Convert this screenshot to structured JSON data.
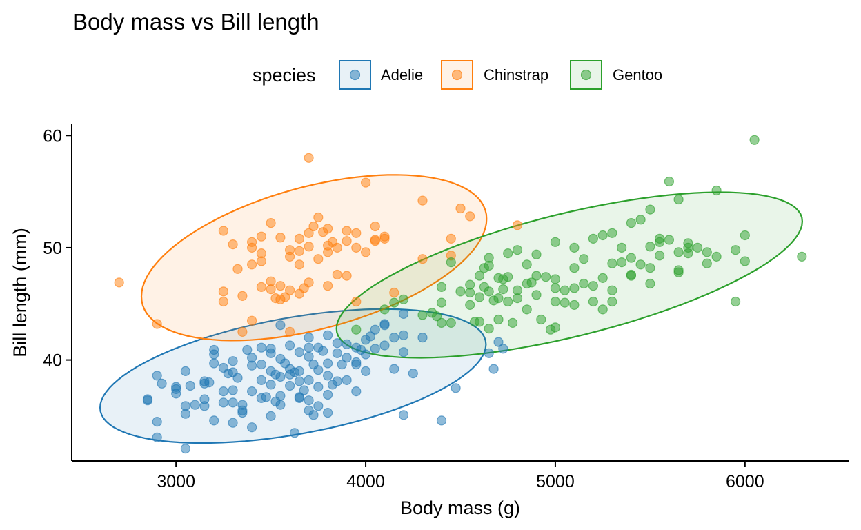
{
  "chart_data": {
    "type": "scatter",
    "title": "Body mass vs Bill length",
    "xlabel": "Body mass (g)",
    "ylabel": "Bill length (mm)",
    "xlim": [
      2450,
      6550
    ],
    "ylim": [
      31,
      61
    ],
    "x_ticks": [
      3000,
      4000,
      5000,
      6000
    ],
    "y_ticks": [
      40,
      50,
      60
    ],
    "grid": false,
    "legend": {
      "title": "species",
      "position": "top"
    },
    "series": [
      {
        "name": "Adelie",
        "color": "#1f77b4",
        "points": [
          [
            2850,
            36.5
          ],
          [
            2850,
            36.4
          ],
          [
            2900,
            38.6
          ],
          [
            2900,
            34.5
          ],
          [
            2900,
            33.1
          ],
          [
            2925,
            37.9
          ],
          [
            3000,
            37.6
          ],
          [
            3000,
            37.0
          ],
          [
            3000,
            37.4
          ],
          [
            3050,
            39.0
          ],
          [
            3050,
            35.2
          ],
          [
            3050,
            35.9
          ],
          [
            3050,
            32.1
          ],
          [
            3075,
            37.7
          ],
          [
            3100,
            36.0
          ],
          [
            3150,
            38.1
          ],
          [
            3150,
            36.5
          ],
          [
            3150,
            37.9
          ],
          [
            3150,
            35.9
          ],
          [
            3175,
            38.0
          ],
          [
            3200,
            40.9
          ],
          [
            3200,
            40.5
          ],
          [
            3200,
            39.7
          ],
          [
            3200,
            34.6
          ],
          [
            3250,
            39.3
          ],
          [
            3250,
            37.2
          ],
          [
            3250,
            36.2
          ],
          [
            3275,
            38.8
          ],
          [
            3300,
            38.9
          ],
          [
            3300,
            37.3
          ],
          [
            3300,
            36.2
          ],
          [
            3300,
            34.4
          ],
          [
            3325,
            38.4
          ],
          [
            3350,
            36.0
          ],
          [
            3350,
            35.5
          ],
          [
            3350,
            35.3
          ],
          [
            3375,
            40.9
          ],
          [
            3400,
            40.2
          ],
          [
            3400,
            39.5
          ],
          [
            3400,
            37.2
          ],
          [
            3400,
            34.0
          ],
          [
            3450,
            41.1
          ],
          [
            3450,
            39.6
          ],
          [
            3450,
            38.2
          ],
          [
            3450,
            36.6
          ],
          [
            3475,
            36.7
          ],
          [
            3500,
            40.6
          ],
          [
            3500,
            39.0
          ],
          [
            3500,
            37.8
          ],
          [
            3500,
            35.0
          ],
          [
            3525,
            38.7
          ],
          [
            3525,
            36.3
          ],
          [
            3550,
            40.1
          ],
          [
            3550,
            38.5
          ],
          [
            3550,
            36.8
          ],
          [
            3550,
            36.0
          ],
          [
            3575,
            39.7
          ],
          [
            3600,
            41.3
          ],
          [
            3600,
            39.2
          ],
          [
            3600,
            37.7
          ],
          [
            3625,
            38.9
          ],
          [
            3625,
            33.5
          ],
          [
            3650,
            40.7
          ],
          [
            3650,
            38.1
          ],
          [
            3650,
            36.6
          ],
          [
            3650,
            39.0
          ],
          [
            3675,
            37.3
          ],
          [
            3700,
            42.0
          ],
          [
            3700,
            40.3
          ],
          [
            3700,
            38.2
          ],
          [
            3700,
            36.4
          ],
          [
            3700,
            35.5
          ],
          [
            3725,
            39.6
          ],
          [
            3725,
            35.1
          ],
          [
            3750,
            41.1
          ],
          [
            3750,
            39.1
          ],
          [
            3750,
            37.6
          ],
          [
            3750,
            35.9
          ],
          [
            3775,
            40.8
          ],
          [
            3800,
            42.2
          ],
          [
            3800,
            39.7
          ],
          [
            3800,
            38.6
          ],
          [
            3800,
            36.9
          ],
          [
            3800,
            35.3
          ],
          [
            3825,
            37.8
          ],
          [
            3850,
            41.5
          ],
          [
            3850,
            40.6
          ],
          [
            3850,
            38.1
          ],
          [
            3875,
            39.6
          ],
          [
            3900,
            41.4
          ],
          [
            3900,
            40.2
          ],
          [
            3900,
            38.2
          ],
          [
            3950,
            41.1
          ],
          [
            3950,
            39.8
          ],
          [
            3950,
            37.2
          ],
          [
            3975,
            40.9
          ],
          [
            4000,
            41.8
          ],
          [
            4000,
            40.5
          ],
          [
            4000,
            39.0
          ],
          [
            4025,
            42.1
          ],
          [
            4050,
            41.0
          ],
          [
            4100,
            43.2
          ],
          [
            4100,
            41.3
          ],
          [
            4150,
            42.0
          ],
          [
            4150,
            39.2
          ],
          [
            4200,
            44.1
          ],
          [
            4200,
            40.7
          ],
          [
            4200,
            35.1
          ],
          [
            4250,
            38.8
          ],
          [
            4300,
            42.0
          ],
          [
            4400,
            34.6
          ],
          [
            4475,
            37.5
          ],
          [
            4650,
            40.6
          ],
          [
            4675,
            39.2
          ],
          [
            4700,
            41.6
          ],
          [
            4725,
            41.0
          ],
          [
            3950,
            39.6
          ],
          [
            4050,
            42.7
          ],
          [
            4100,
            43.1
          ],
          [
            4200,
            42.2
          ],
          [
            3650,
            36.7
          ],
          [
            3700,
            41.1
          ],
          [
            3300,
            39.9
          ],
          [
            3600,
            38.7
          ],
          [
            3500,
            41.0
          ],
          [
            3550,
            43.1
          ]
        ]
      },
      {
        "name": "Chinstrap",
        "color": "#ff7f0e",
        "points": [
          [
            2700,
            46.9
          ],
          [
            2900,
            43.2
          ],
          [
            3250,
            51.5
          ],
          [
            3250,
            46.1
          ],
          [
            3250,
            45.2
          ],
          [
            3300,
            50.3
          ],
          [
            3325,
            48.1
          ],
          [
            3350,
            42.5
          ],
          [
            3400,
            50.5
          ],
          [
            3400,
            50.0
          ],
          [
            3400,
            48.5
          ],
          [
            3400,
            43.5
          ],
          [
            3450,
            51.0
          ],
          [
            3450,
            49.5
          ],
          [
            3450,
            46.5
          ],
          [
            3500,
            52.2
          ],
          [
            3500,
            46.3
          ],
          [
            3525,
            45.5
          ],
          [
            3550,
            50.9
          ],
          [
            3550,
            46.6
          ],
          [
            3550,
            45.4
          ],
          [
            3575,
            45.6
          ],
          [
            3600,
            49.8
          ],
          [
            3600,
            46.2
          ],
          [
            3600,
            42.5
          ],
          [
            3650,
            50.8
          ],
          [
            3650,
            48.5
          ],
          [
            3650,
            45.9
          ],
          [
            3675,
            46.4
          ],
          [
            3700,
            58.0
          ],
          [
            3700,
            51.3
          ],
          [
            3700,
            50.1
          ],
          [
            3700,
            46.9
          ],
          [
            3725,
            51.9
          ],
          [
            3750,
            52.7
          ],
          [
            3750,
            49.0
          ],
          [
            3775,
            51.4
          ],
          [
            3800,
            51.7
          ],
          [
            3800,
            50.2
          ],
          [
            3800,
            49.6
          ],
          [
            3800,
            46.6
          ],
          [
            3825,
            50.5
          ],
          [
            3850,
            50.0
          ],
          [
            3850,
            47.6
          ],
          [
            3900,
            51.5
          ],
          [
            3900,
            47.5
          ],
          [
            3950,
            51.3
          ],
          [
            3950,
            50.0
          ],
          [
            3950,
            45.2
          ],
          [
            4000,
            55.8
          ],
          [
            4050,
            51.9
          ],
          [
            4050,
            50.7
          ],
          [
            4050,
            50.6
          ],
          [
            4100,
            51.0
          ],
          [
            4100,
            50.8
          ],
          [
            4150,
            46.0
          ],
          [
            4300,
            54.2
          ],
          [
            4300,
            49.0
          ],
          [
            4450,
            49.3
          ],
          [
            4450,
            50.8
          ],
          [
            4500,
            53.5
          ],
          [
            4550,
            52.8
          ],
          [
            4800,
            52.0
          ],
          [
            3650,
            49.7
          ],
          [
            3500,
            47.0
          ],
          [
            4000,
            49.6
          ],
          [
            3350,
            45.7
          ],
          [
            3900,
            50.6
          ],
          [
            3600,
            49.2
          ],
          [
            3450,
            48.8
          ]
        ]
      },
      {
        "name": "Gentoo",
        "color": "#2ca02c",
        "points": [
          [
            3950,
            42.7
          ],
          [
            4100,
            44.5
          ],
          [
            4150,
            45.1
          ],
          [
            4200,
            45.4
          ],
          [
            4300,
            44.0
          ],
          [
            4350,
            44.2
          ],
          [
            4375,
            43.9
          ],
          [
            4400,
            46.5
          ],
          [
            4400,
            45.1
          ],
          [
            4400,
            43.3
          ],
          [
            4450,
            43.3
          ],
          [
            4500,
            46.1
          ],
          [
            4550,
            46.7
          ],
          [
            4550,
            44.9
          ],
          [
            4575,
            43.4
          ],
          [
            4600,
            47.5
          ],
          [
            4600,
            45.6
          ],
          [
            4600,
            43.4
          ],
          [
            4625,
            48.2
          ],
          [
            4625,
            46.5
          ],
          [
            4650,
            49.1
          ],
          [
            4650,
            48.4
          ],
          [
            4650,
            46.1
          ],
          [
            4650,
            42.8
          ],
          [
            4675,
            45.3
          ],
          [
            4700,
            47.3
          ],
          [
            4700,
            45.5
          ],
          [
            4700,
            43.6
          ],
          [
            4725,
            47.2
          ],
          [
            4725,
            46.3
          ],
          [
            4750,
            49.5
          ],
          [
            4750,
            47.4
          ],
          [
            4750,
            45.2
          ],
          [
            4775,
            43.3
          ],
          [
            4800,
            49.8
          ],
          [
            4800,
            46.2
          ],
          [
            4850,
            48.5
          ],
          [
            4850,
            46.8
          ],
          [
            4850,
            44.5
          ],
          [
            4875,
            46.9
          ],
          [
            4900,
            49.4
          ],
          [
            4900,
            47.5
          ],
          [
            4900,
            45.8
          ],
          [
            4925,
            43.6
          ],
          [
            4950,
            47.4
          ],
          [
            4975,
            42.7
          ],
          [
            5000,
            50.5
          ],
          [
            5000,
            47.2
          ],
          [
            5000,
            46.4
          ],
          [
            5000,
            45.2
          ],
          [
            5000,
            42.9
          ],
          [
            5050,
            46.2
          ],
          [
            5050,
            45.1
          ],
          [
            5100,
            48.2
          ],
          [
            5100,
            46.4
          ],
          [
            5100,
            44.9
          ],
          [
            5150,
            49.0
          ],
          [
            5150,
            46.8
          ],
          [
            5200,
            50.8
          ],
          [
            5200,
            46.6
          ],
          [
            5200,
            45.2
          ],
          [
            5250,
            51.1
          ],
          [
            5250,
            47.3
          ],
          [
            5250,
            44.5
          ],
          [
            5300,
            51.3
          ],
          [
            5300,
            48.6
          ],
          [
            5300,
            46.2
          ],
          [
            5300,
            45.2
          ],
          [
            5350,
            50.0
          ],
          [
            5350,
            48.7
          ],
          [
            5400,
            52.2
          ],
          [
            5400,
            49.1
          ],
          [
            5400,
            47.6
          ],
          [
            5450,
            52.5
          ],
          [
            5450,
            48.5
          ],
          [
            5500,
            53.4
          ],
          [
            5500,
            50.1
          ],
          [
            5500,
            48.2
          ],
          [
            5500,
            46.8
          ],
          [
            5550,
            50.8
          ],
          [
            5550,
            49.3
          ],
          [
            5600,
            55.9
          ],
          [
            5600,
            50.7
          ],
          [
            5650,
            54.3
          ],
          [
            5650,
            49.6
          ],
          [
            5650,
            47.8
          ],
          [
            5700,
            50.4
          ],
          [
            5700,
            50.0
          ],
          [
            5700,
            49.5
          ],
          [
            5750,
            50.0
          ],
          [
            5800,
            49.6
          ],
          [
            5850,
            55.1
          ],
          [
            5850,
            49.2
          ],
          [
            5950,
            49.8
          ],
          [
            5950,
            45.2
          ],
          [
            6000,
            51.1
          ],
          [
            6000,
            48.8
          ],
          [
            6050,
            59.6
          ],
          [
            6300,
            49.2
          ],
          [
            4450,
            48.7
          ],
          [
            4550,
            46.0
          ],
          [
            5550,
            50.5
          ],
          [
            5800,
            48.6
          ],
          [
            4800,
            45.5
          ],
          [
            5100,
            50.0
          ],
          [
            5400,
            47.5
          ],
          [
            5650,
            48.0
          ]
        ]
      }
    ]
  }
}
